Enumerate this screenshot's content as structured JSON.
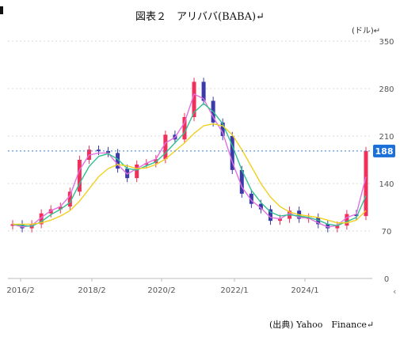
{
  "title": "図表２　アリババ(BABA)↵",
  "unit_label": "(ドル)↵",
  "source": "(出典) Yahoo　Finance↵",
  "scroll_glyph": "‹",
  "colors": {
    "up": "#f0305a",
    "down": "#3a3aa8",
    "ma_short": "#e070e0",
    "ma_mid": "#30c090",
    "ma_long": "#f0d020",
    "last_price_line": "#3a7fd0",
    "badge": "#1a6fd8"
  },
  "chart_data": {
    "type": "line",
    "title": "アリババ(BABA)",
    "ylabel": "ドル",
    "ylim": [
      0,
      350
    ],
    "yticks": [
      0,
      70,
      140,
      210,
      280,
      350
    ],
    "xticks": [
      "2016/2",
      "2018/2",
      "2020/2",
      "2022/1",
      "2024/1"
    ],
    "last_price": 188,
    "last_price_label": "188",
    "grid": true,
    "series": [
      {
        "type": "candlestick",
        "x": [
          "2015/12",
          "2016/3",
          "2016/6",
          "2016/9",
          "2016/12",
          "2017/3",
          "2017/6",
          "2017/9",
          "2017/12",
          "2018/3",
          "2018/6",
          "2018/9",
          "2018/12",
          "2019/3",
          "2019/6",
          "2019/9",
          "2019/12",
          "2020/3",
          "2020/6",
          "2020/9",
          "2020/12",
          "2021/3",
          "2021/6",
          "2021/9",
          "2021/12",
          "2022/3",
          "2022/6",
          "2022/9",
          "2022/12",
          "2023/3",
          "2023/6",
          "2023/9",
          "2023/12",
          "2024/3",
          "2024/6",
          "2024/9",
          "2024/12",
          "2025/3"
        ],
        "values": [
          80,
          74,
          80,
          96,
          102,
          106,
          128,
          175,
          190,
          188,
          185,
          162,
          148,
          168,
          170,
          176,
          212,
          205,
          238,
          290,
          262,
          230,
          210,
          160,
          125,
          110,
          102,
          85,
          88,
          100,
          88,
          90,
          80,
          74,
          78,
          95,
          92,
          188
        ]
      },
      {
        "name": "",
        "x": [
          "2015/12",
          "2016/3",
          "2016/6",
          "2016/9",
          "2016/12",
          "2017/3",
          "2017/6",
          "2017/9",
          "2017/12",
          "2018/3",
          "2018/6",
          "2018/9",
          "2018/12",
          "2019/3",
          "2019/6",
          "2019/9",
          "2019/12",
          "2020/3",
          "2020/6",
          "2020/9",
          "2020/12",
          "2021/3",
          "2021/6",
          "2021/9",
          "2021/12",
          "2022/3",
          "2022/6",
          "2022/9",
          "2022/12",
          "2023/3",
          "2023/6",
          "2023/9",
          "2023/12",
          "2024/3",
          "2024/6",
          "2024/9",
          "2024/12",
          "2025/3"
        ],
        "values": [
          80,
          76,
          78,
          90,
          100,
          106,
          122,
          160,
          182,
          185,
          185,
          168,
          154,
          162,
          170,
          176,
          200,
          208,
          230,
          272,
          265,
          238,
          215,
          172,
          135,
          115,
          104,
          90,
          88,
          96,
          90,
          89,
          82,
          76,
          78,
          90,
          95,
          150
        ]
      },
      {
        "name": "",
        "x": [
          "2015/12",
          "2016/3",
          "2016/6",
          "2016/9",
          "2016/12",
          "2017/3",
          "2017/6",
          "2017/9",
          "2017/12",
          "2018/3",
          "2018/6",
          "2018/9",
          "2018/12",
          "2019/3",
          "2019/6",
          "2019/9",
          "2019/12",
          "2020/3",
          "2020/6",
          "2020/9",
          "2020/12",
          "2021/3",
          "2021/6",
          "2021/9",
          "2021/12",
          "2022/3",
          "2022/6",
          "2022/9",
          "2022/12",
          "2023/3",
          "2023/6",
          "2023/9",
          "2023/12",
          "2024/3",
          "2024/6",
          "2024/9",
          "2024/12",
          "2025/3"
        ],
        "values": [
          80,
          78,
          77,
          84,
          94,
          102,
          112,
          140,
          165,
          180,
          184,
          176,
          162,
          160,
          166,
          172,
          185,
          200,
          215,
          245,
          258,
          246,
          228,
          196,
          160,
          130,
          112,
          98,
          92,
          94,
          92,
          90,
          86,
          80,
          78,
          84,
          90,
          122
        ]
      },
      {
        "name": "",
        "x": [
          "2015/12",
          "2016/3",
          "2016/6",
          "2016/9",
          "2016/12",
          "2017/3",
          "2017/6",
          "2017/9",
          "2017/12",
          "2018/3",
          "2018/6",
          "2018/9",
          "2018/12",
          "2019/3",
          "2019/6",
          "2019/9",
          "2019/12",
          "2020/3",
          "2020/6",
          "2020/9",
          "2020/12",
          "2021/3",
          "2021/6",
          "2021/9",
          "2021/12",
          "2022/3",
          "2022/6",
          "2022/9",
          "2022/12",
          "2023/3",
          "2023/6",
          "2023/9",
          "2023/12",
          "2024/3",
          "2024/6",
          "2024/9",
          "2024/12",
          "2025/3"
        ],
        "values": [
          80,
          80,
          80,
          82,
          86,
          92,
          100,
          114,
          132,
          150,
          162,
          168,
          166,
          162,
          163,
          168,
          176,
          188,
          200,
          214,
          225,
          228,
          225,
          212,
          190,
          165,
          140,
          120,
          106,
          98,
          94,
          92,
          90,
          86,
          82,
          82,
          86,
          100
        ]
      }
    ]
  }
}
